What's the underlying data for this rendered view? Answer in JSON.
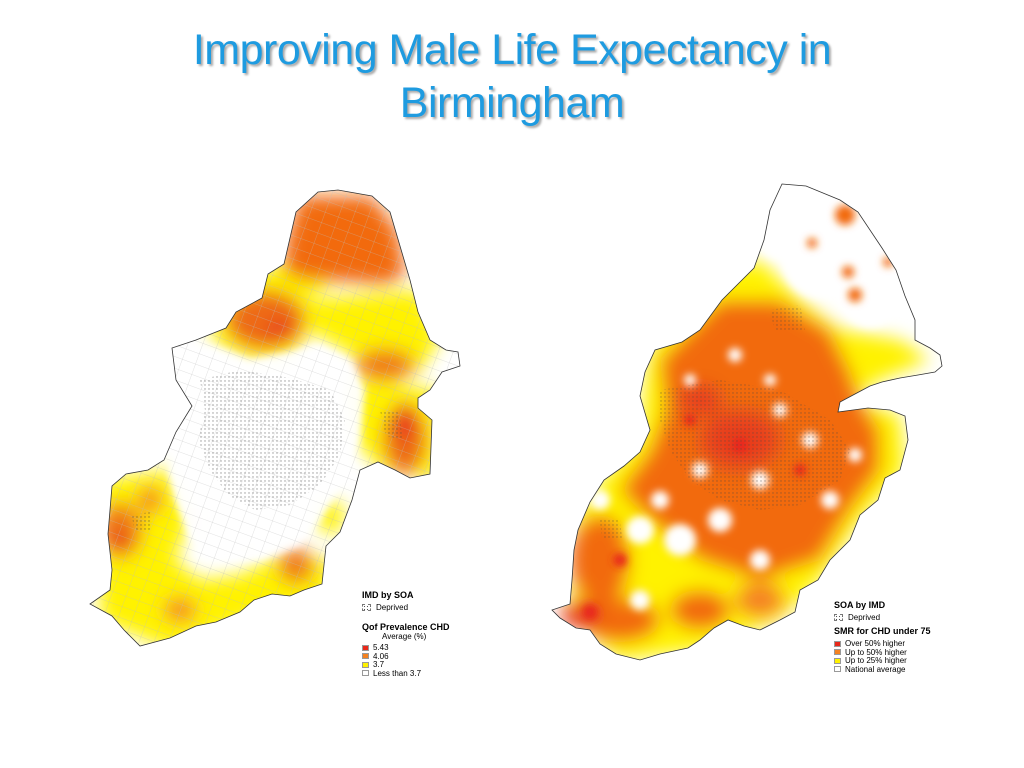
{
  "slide": {
    "title_line1": "Improving Male Life Expectancy in",
    "title_line2": "Birmingham"
  },
  "left_map": {
    "legend": {
      "deprivation_title": "IMD by SOA",
      "deprivation_item": "Deprived",
      "prevalence_title": "Qof Prevalence CHD",
      "prevalence_subtitle": "Average (%)",
      "items": [
        {
          "label": "5.43",
          "color": "#E8281A"
        },
        {
          "label": "4.06",
          "color": "#F58220"
        },
        {
          "label": "3.7",
          "color": "#FFF200"
        },
        {
          "label": "Less than 3.7",
          "color": "#FFFFFF"
        }
      ]
    }
  },
  "right_map": {
    "legend": {
      "deprivation_title": "SOA by IMD",
      "deprivation_item": "Deprived",
      "smr_title": "SMR for CHD under 75",
      "items": [
        {
          "label": "Over 50% higher",
          "color": "#E8281A"
        },
        {
          "label": "Up to 50% higher",
          "color": "#F58220"
        },
        {
          "label": "Up to 25% higher",
          "color": "#FFF200"
        },
        {
          "label": "National average",
          "color": "#FFFFFF"
        }
      ]
    }
  },
  "colors": {
    "title": "#1E9BE0",
    "red": "#E8281A",
    "orange": "#F26B10",
    "yellow": "#FFF200"
  }
}
